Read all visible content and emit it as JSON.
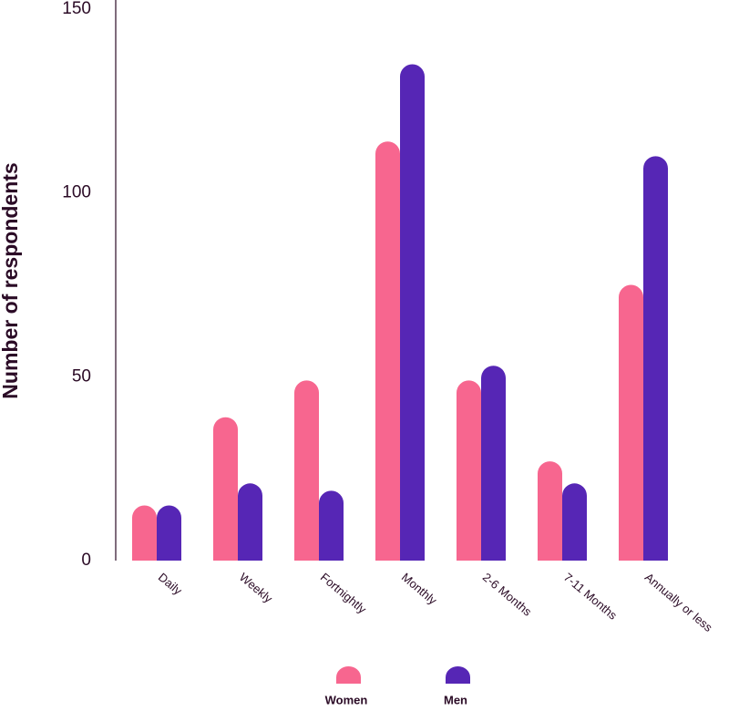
{
  "chart_data": {
    "type": "bar",
    "y_label": "Number of respondents",
    "categories": [
      "Daily",
      "Weekly",
      "Fortnightly",
      "Monthly",
      "2-6 Months",
      "7-11 Months",
      "Annually or less"
    ],
    "series": [
      {
        "name": "Women",
        "color": "#f7668f",
        "values": [
          15,
          39,
          49,
          114,
          49,
          27,
          75
        ]
      },
      {
        "name": "Men",
        "color": "#5626b5",
        "values": [
          15,
          21,
          19,
          135,
          53,
          21,
          110
        ]
      }
    ],
    "ylim": [
      0,
      150
    ],
    "yticks": [
      0,
      50,
      100,
      150
    ]
  }
}
